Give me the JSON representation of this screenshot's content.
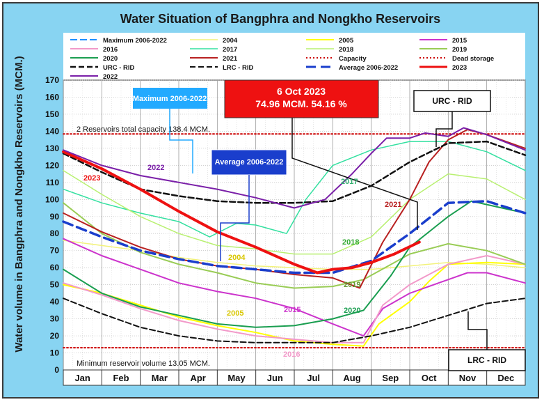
{
  "chart_data": {
    "type": "line",
    "title": "Water Situation of Bangphra and Nongkho Reservoirs",
    "ylabel": "Water volume in Bangphra and Nongkho Reservoirs (MCM.)",
    "xlabel": "",
    "ylim": [
      0,
      170
    ],
    "ytick_step": 10,
    "months": [
      "Jan",
      "Feb",
      "Mar",
      "Apr",
      "May",
      "Jun",
      "Jul",
      "Aug",
      "Sep",
      "Oct",
      "Nov",
      "Dec"
    ],
    "grid": true,
    "legend_position": "top",
    "x_unit": "month (day of year / 30.4)",
    "series": [
      {
        "name": "Maximum 2006-2022",
        "color": "#1e90ff",
        "dash": "10,4",
        "width": 2,
        "points": []
      },
      {
        "name": "2004",
        "color": "#f2f27a",
        "dash": "",
        "width": 1.5,
        "points": [
          [
            0,
            76
          ],
          [
            1,
            73
          ],
          [
            2,
            70
          ],
          [
            3,
            66
          ],
          [
            4,
            63
          ],
          [
            5,
            61
          ],
          [
            6,
            60
          ],
          [
            7,
            59
          ],
          [
            8,
            59
          ],
          [
            9,
            61
          ],
          [
            10,
            63
          ],
          [
            11,
            62
          ],
          [
            12,
            60
          ]
        ]
      },
      {
        "name": "2005",
        "color": "#ffff00",
        "dash": "",
        "width": 2,
        "points": [
          [
            0,
            50
          ],
          [
            1,
            45
          ],
          [
            2,
            38
          ],
          [
            3,
            31
          ],
          [
            4,
            26
          ],
          [
            5,
            22
          ],
          [
            6,
            17
          ],
          [
            7,
            15
          ],
          [
            7.8,
            14
          ],
          [
            8.2,
            27
          ],
          [
            9,
            40
          ],
          [
            9.5,
            52
          ],
          [
            10,
            62
          ],
          [
            11,
            63
          ],
          [
            12,
            62
          ]
        ]
      },
      {
        "name": "2015",
        "color": "#cc33cc",
        "dash": "",
        "width": 2,
        "points": [
          [
            0,
            77
          ],
          [
            1,
            67
          ],
          [
            2,
            59
          ],
          [
            3,
            51
          ],
          [
            4,
            46
          ],
          [
            5,
            42
          ],
          [
            6,
            36
          ],
          [
            7,
            27
          ],
          [
            7.8,
            20
          ],
          [
            8.3,
            36
          ],
          [
            9,
            45
          ],
          [
            10,
            53
          ],
          [
            10.5,
            57
          ],
          [
            11,
            57
          ],
          [
            12,
            51
          ]
        ]
      },
      {
        "name": "2016",
        "color": "#f299c9",
        "dash": "",
        "width": 2,
        "points": [
          [
            0,
            51
          ],
          [
            1,
            44
          ],
          [
            2,
            36
          ],
          [
            3,
            29
          ],
          [
            4,
            24
          ],
          [
            5,
            20
          ],
          [
            6,
            18
          ],
          [
            7,
            16
          ],
          [
            7.8,
            16
          ],
          [
            8.3,
            38
          ],
          [
            9,
            50
          ],
          [
            10,
            62
          ],
          [
            11,
            67
          ],
          [
            12,
            62
          ]
        ]
      },
      {
        "name": "2017",
        "color": "#33e0a0",
        "dash": "",
        "width": 1.5,
        "points": [
          [
            0,
            106
          ],
          [
            1,
            98
          ],
          [
            2,
            92
          ],
          [
            3,
            87
          ],
          [
            3.8,
            78
          ],
          [
            4.5,
            86
          ],
          [
            5,
            85
          ],
          [
            5.8,
            80
          ],
          [
            6.3,
            100
          ],
          [
            7,
            120
          ],
          [
            8,
            129
          ],
          [
            9,
            134
          ],
          [
            10,
            134
          ],
          [
            11,
            128
          ],
          [
            12,
            117
          ]
        ]
      },
      {
        "name": "2018",
        "color": "#b8f070",
        "dash": "",
        "width": 1.5,
        "points": [
          [
            0,
            117
          ],
          [
            1,
            103
          ],
          [
            2,
            90
          ],
          [
            3,
            80
          ],
          [
            4,
            73
          ],
          [
            5,
            71
          ],
          [
            6,
            68
          ],
          [
            7,
            68
          ],
          [
            8,
            78
          ],
          [
            9,
            100
          ],
          [
            10,
            115
          ],
          [
            11,
            112
          ],
          [
            12,
            100
          ]
        ]
      },
      {
        "name": "2019",
        "color": "#99cc55",
        "dash": "",
        "width": 2,
        "points": [
          [
            0,
            98
          ],
          [
            1,
            80
          ],
          [
            2,
            69
          ],
          [
            3,
            62
          ],
          [
            4,
            57
          ],
          [
            5,
            51
          ],
          [
            6,
            48
          ],
          [
            7,
            49
          ],
          [
            7.8,
            53
          ],
          [
            9,
            68
          ],
          [
            10,
            74
          ],
          [
            11,
            70
          ],
          [
            12,
            62
          ]
        ]
      },
      {
        "name": "2020",
        "color": "#1a9e50",
        "dash": "",
        "width": 2,
        "points": [
          [
            0,
            59
          ],
          [
            1,
            45
          ],
          [
            2,
            37
          ],
          [
            3,
            32
          ],
          [
            4,
            27
          ],
          [
            5,
            25
          ],
          [
            6,
            26
          ],
          [
            7,
            30
          ],
          [
            7.8,
            35
          ],
          [
            8.5,
            55
          ],
          [
            9,
            72
          ],
          [
            10,
            90
          ],
          [
            10.6,
            99
          ],
          [
            11,
            97
          ],
          [
            12,
            92
          ]
        ]
      },
      {
        "name": "2021",
        "color": "#b82020",
        "dash": "",
        "width": 2,
        "points": [
          [
            0,
            92
          ],
          [
            1,
            81
          ],
          [
            2,
            72
          ],
          [
            3,
            65
          ],
          [
            4,
            61
          ],
          [
            5,
            59
          ],
          [
            6,
            56
          ],
          [
            7,
            54
          ],
          [
            7.7,
            48
          ],
          [
            8.3,
            75
          ],
          [
            9,
            100
          ],
          [
            9.5,
            122
          ],
          [
            10,
            135
          ],
          [
            10.5,
            141
          ],
          [
            11,
            138
          ],
          [
            12,
            130
          ]
        ]
      },
      {
        "name": "Capacity",
        "color": "#cc0000",
        "dash": "2,3",
        "width": 2,
        "points": [
          [
            0,
            138.4
          ],
          [
            12,
            138.4
          ]
        ]
      },
      {
        "name": "Dead storage",
        "color": "#cc0000",
        "dash": "2,3",
        "width": 2,
        "points": [
          [
            0,
            13.05
          ],
          [
            12,
            13.05
          ]
        ]
      },
      {
        "name": "URC - RID",
        "color": "#111111",
        "dash": "8,4",
        "width": 2.5,
        "points": [
          [
            0,
            127
          ],
          [
            1,
            116
          ],
          [
            2,
            106
          ],
          [
            3,
            102
          ],
          [
            4,
            99
          ],
          [
            5,
            98
          ],
          [
            6,
            98
          ],
          [
            7,
            99
          ],
          [
            8,
            108
          ],
          [
            9,
            122
          ],
          [
            10,
            133
          ],
          [
            11,
            134
          ],
          [
            12,
            126
          ]
        ]
      },
      {
        "name": "LRC - RID",
        "color": "#111111",
        "dash": "8,4",
        "width": 2,
        "points": [
          [
            0,
            42
          ],
          [
            1,
            33
          ],
          [
            2,
            25
          ],
          [
            3,
            20
          ],
          [
            4,
            17
          ],
          [
            5,
            16
          ],
          [
            6,
            16
          ],
          [
            7,
            16
          ],
          [
            8,
            20
          ],
          [
            9,
            25
          ],
          [
            10,
            32
          ],
          [
            11,
            39
          ],
          [
            12,
            42
          ]
        ]
      },
      {
        "name": "Average 2006-2022",
        "color": "#1a3ecc",
        "dash": "14,7",
        "width": 3.5,
        "points": [
          [
            0,
            87
          ],
          [
            1,
            78
          ],
          [
            2,
            70
          ],
          [
            3,
            65
          ],
          [
            4,
            61
          ],
          [
            5,
            59
          ],
          [
            6,
            57
          ],
          [
            7,
            57
          ],
          [
            8,
            64
          ],
          [
            9,
            80
          ],
          [
            10,
            98
          ],
          [
            11,
            99
          ],
          [
            12,
            92
          ]
        ]
      },
      {
        "name": "2023",
        "color": "#ee1111",
        "dash": "",
        "width": 4,
        "points": [
          [
            0,
            128
          ],
          [
            1,
            118
          ],
          [
            2,
            106
          ],
          [
            3,
            93
          ],
          [
            4,
            81
          ],
          [
            5,
            72
          ],
          [
            6,
            62
          ],
          [
            6.6,
            57
          ],
          [
            7,
            59
          ],
          [
            7.5,
            60
          ],
          [
            8,
            63
          ],
          [
            8.6,
            68
          ],
          [
            9.25,
            75
          ]
        ]
      },
      {
        "name": "2022",
        "color": "#7a1fa8",
        "dash": "",
        "width": 2,
        "points": [
          [
            0,
            129
          ],
          [
            1,
            120
          ],
          [
            2,
            114
          ],
          [
            3,
            110
          ],
          [
            4,
            106
          ],
          [
            5,
            101
          ],
          [
            6,
            95
          ],
          [
            6.8,
            100
          ],
          [
            7.5,
            115
          ],
          [
            8,
            127
          ],
          [
            8.4,
            136
          ],
          [
            9,
            136
          ],
          [
            9.4,
            139
          ],
          [
            10,
            137
          ],
          [
            10.4,
            142
          ],
          [
            11,
            138
          ],
          [
            12,
            129
          ]
        ]
      }
    ]
  },
  "annotations": {
    "current_date": "6 Oct 2023",
    "current_value": "74.96 MCM. 54.16 %",
    "capacity_text": "2 Reservoirs total capacity 138.4 MCM.",
    "minimum_text": "Minimum reservoir volume 13.05 MCM.",
    "max_box": "Maximum 2006-2022",
    "avg_box": "Average 2006-2022",
    "urc_box": "URC - RID",
    "lrc_box": "LRC - RID",
    "year_labels": {
      "l2023": "2023",
      "l2022": "2022",
      "l2017": "2017",
      "l2021": "2021",
      "l2018": "2018",
      "l2004": "2004",
      "l2019": "2019",
      "l2005": "2005",
      "l2015": "2015",
      "l2020": "2020",
      "l2016": "2016"
    }
  }
}
